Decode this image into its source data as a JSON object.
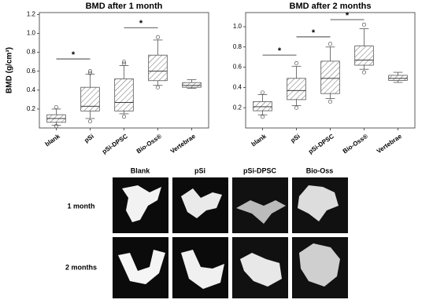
{
  "chart_data": [
    {
      "type": "box",
      "title": "BMD after 1 month",
      "ylabel": "BMD (g/cm³)",
      "categories": [
        "blank",
        "pSi",
        "pSi-DPSC",
        "Bio-Oss®",
        "Vertebrae"
      ],
      "boxes": [
        {
          "low": 0.03,
          "q1": 0.06,
          "median": 0.1,
          "q3": 0.14,
          "high": 0.2,
          "outliers": [
            0.22,
            0.02
          ]
        },
        {
          "low": 0.1,
          "q1": 0.18,
          "median": 0.23,
          "q3": 0.43,
          "high": 0.57,
          "outliers": [
            0.58,
            0.6,
            0.07
          ]
        },
        {
          "low": 0.15,
          "q1": 0.18,
          "median": 0.27,
          "q3": 0.52,
          "high": 0.66,
          "outliers": [
            0.68,
            0.7,
            0.12
          ]
        },
        {
          "low": 0.45,
          "q1": 0.5,
          "median": 0.6,
          "q3": 0.77,
          "high": 0.93,
          "outliers": [
            0.96,
            0.43
          ]
        },
        {
          "low": 0.42,
          "q1": 0.43,
          "median": 0.45,
          "q3": 0.48,
          "high": 0.51,
          "outliers": []
        }
      ],
      "annotations": [
        {
          "text": "*",
          "between": [
            "blank",
            "pSi"
          ],
          "y": 0.73
        },
        {
          "text": "*",
          "between": [
            "pSi-DPSC",
            "Bio-Oss®"
          ],
          "y": 1.06
        }
      ],
      "ylim": [
        0,
        1.22
      ],
      "yticks": [
        0.2,
        0.4,
        0.6,
        0.8,
        {
          "value": 1,
          "label": "1.0"
        },
        1.2
      ],
      "color": "#555555"
    },
    {
      "type": "box",
      "title": "BMD after 2 months",
      "categories": [
        "blank",
        "pSi",
        "pSi-DPSC",
        "Bio-Oss®",
        "Vertebrae"
      ],
      "boxes": [
        {
          "low": 0.13,
          "q1": 0.17,
          "median": 0.21,
          "q3": 0.26,
          "high": 0.33,
          "outliers": [
            0.35,
            0.11
          ]
        },
        {
          "low": 0.22,
          "q1": 0.28,
          "median": 0.37,
          "q3": 0.49,
          "high": 0.61,
          "outliers": [
            0.64,
            0.2
          ]
        },
        {
          "low": 0.29,
          "q1": 0.34,
          "median": 0.49,
          "q3": 0.66,
          "high": 0.8,
          "outliers": [
            0.83,
            0.26
          ]
        },
        {
          "low": 0.58,
          "q1": 0.62,
          "median": 0.67,
          "q3": 0.81,
          "high": 0.98,
          "outliers": [
            1.02,
            0.55
          ]
        },
        {
          "low": 0.45,
          "q1": 0.47,
          "median": 0.49,
          "q3": 0.52,
          "high": 0.55,
          "outliers": []
        }
      ],
      "annotations": [
        {
          "text": "*",
          "between": [
            "blank",
            "pSi"
          ],
          "y": 0.72
        },
        {
          "text": "*",
          "between": [
            "pSi",
            "pSi-DPSC"
          ],
          "y": 0.9
        },
        {
          "text": "*",
          "between": [
            "pSi-DPSC",
            "Bio-Oss®"
          ],
          "y": 1.07
        }
      ],
      "ylim": [
        0,
        1.14
      ],
      "yticks": [
        0.2,
        0.4,
        0.6,
        0.8,
        {
          "value": 1,
          "label": "1.0"
        }
      ],
      "color": "#555555"
    }
  ],
  "images": {
    "columns": [
      "Blank",
      "pSi",
      "pSi-DPSC",
      "Bio-Oss"
    ],
    "rows": [
      "1 month",
      "2 months"
    ]
  }
}
